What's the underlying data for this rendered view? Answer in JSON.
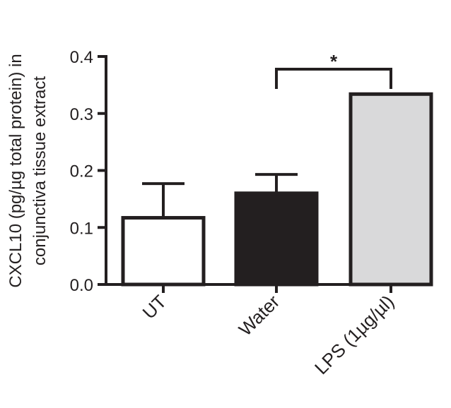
{
  "chart_data": {
    "type": "bar",
    "categories": [
      "UT",
      "Water",
      "LPS (1µg/µl)"
    ],
    "values": [
      0.117,
      0.16,
      0.334
    ],
    "error_upper": [
      0.177,
      0.193,
      0.335
    ],
    "bar_colors": [
      "#ffffff",
      "#231f20",
      "#d9d9da"
    ],
    "ylabel_lines": [
      "CXCL10 (pg/µg total protein) in",
      "conjunctiva tissue extract"
    ],
    "ylim": [
      0,
      0.4
    ],
    "yticks": [
      0.0,
      0.1,
      0.2,
      0.3,
      0.4
    ],
    "ytick_labels": [
      "0.0",
      "0.1",
      "0.2",
      "0.3",
      "0.4"
    ],
    "grid": false,
    "significance": {
      "from": 1,
      "to": 2,
      "label": "*"
    },
    "colors": {
      "axis": "#231f20"
    }
  }
}
